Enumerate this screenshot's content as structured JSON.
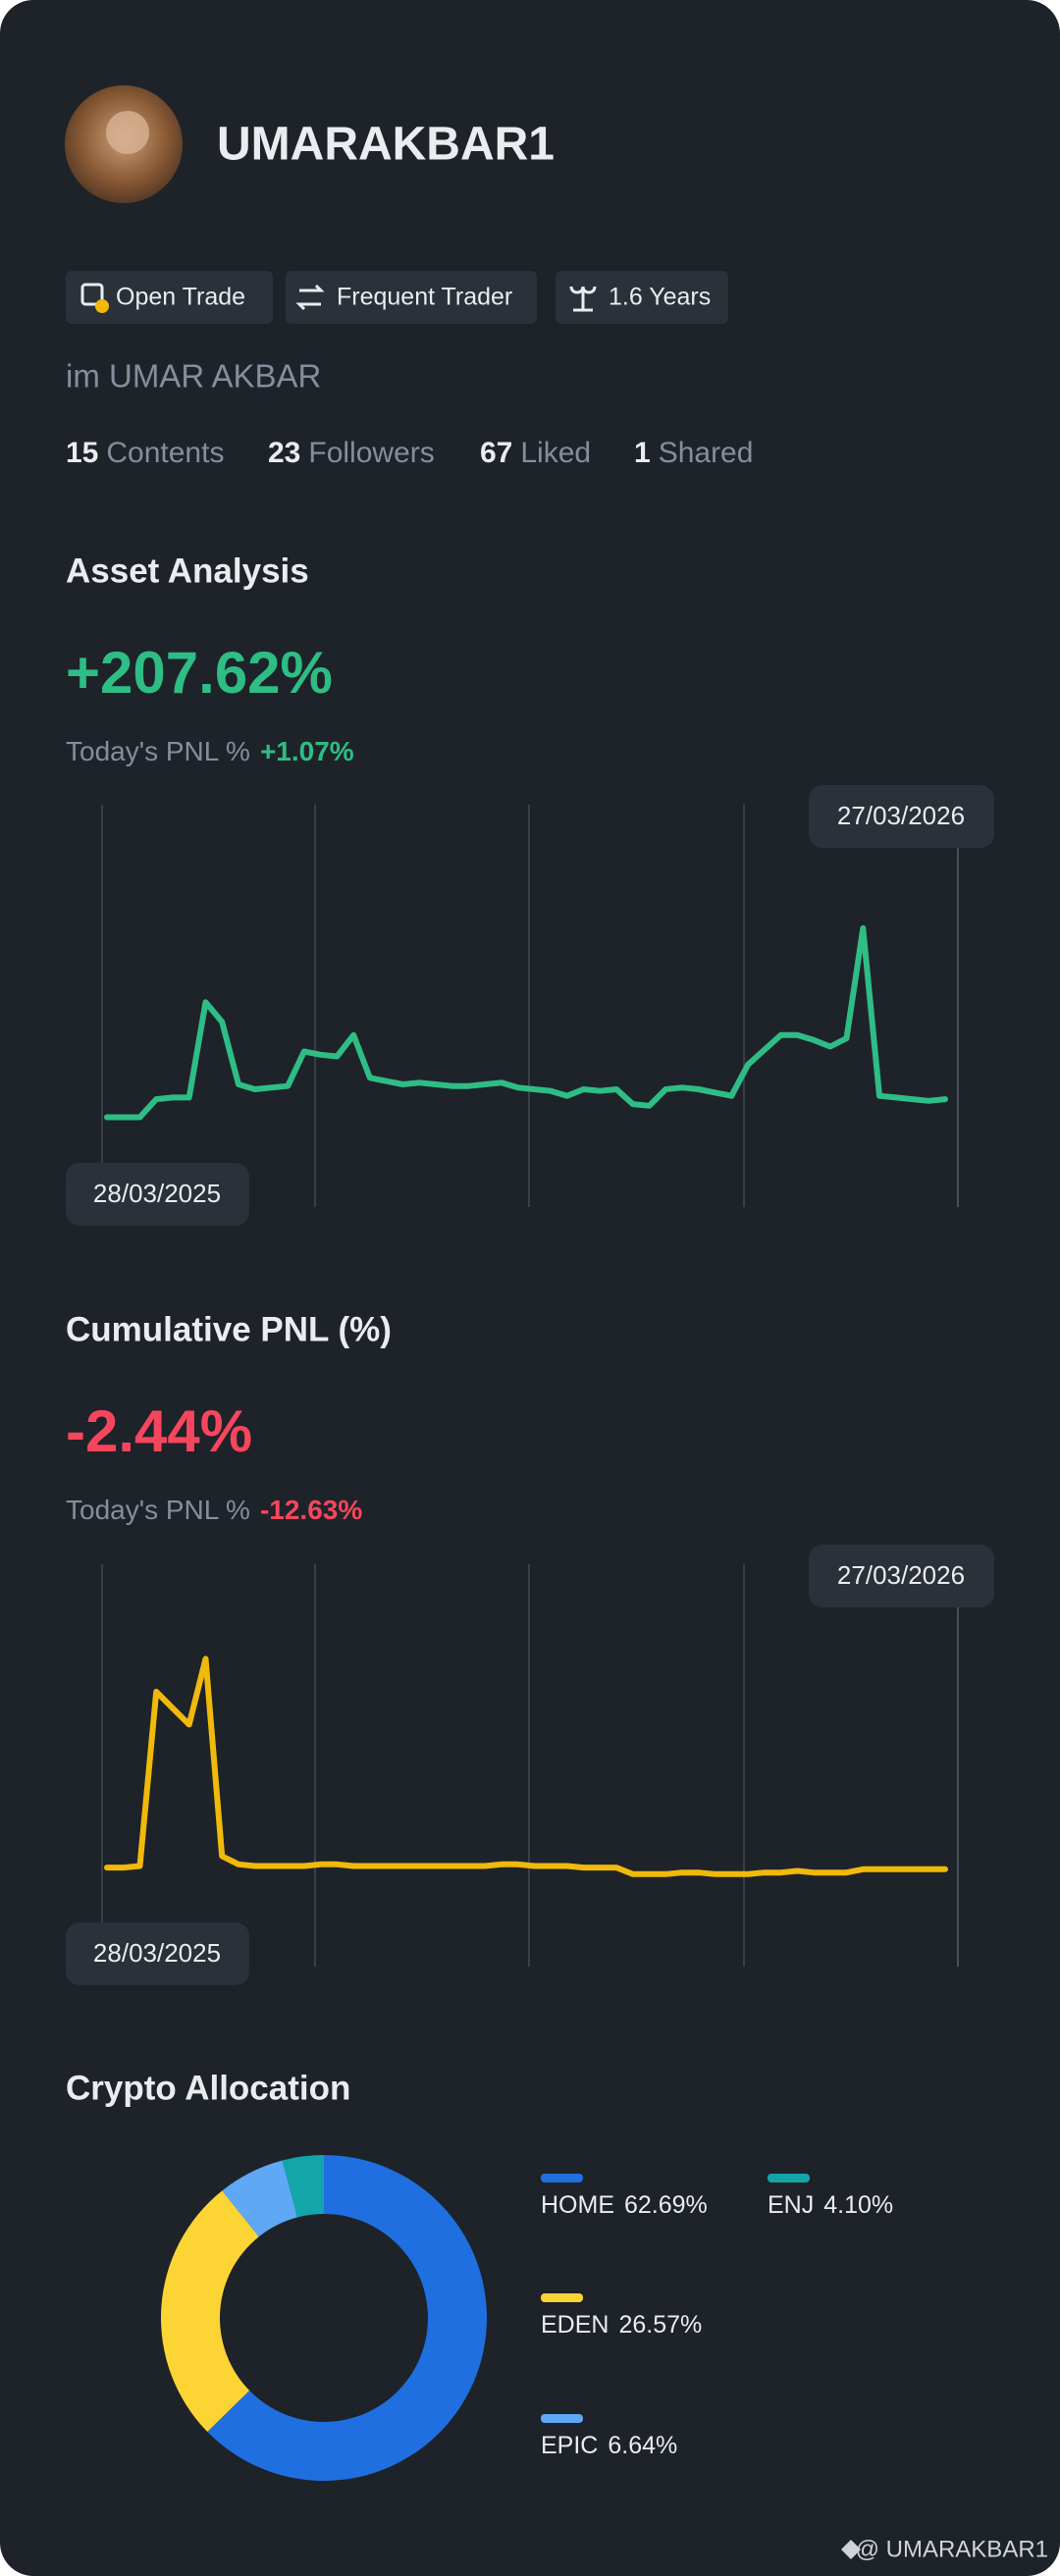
{
  "profile": {
    "name": "UMARAKBAR1",
    "badges": [
      "Open Trade",
      "Frequent Trader",
      "1.6 Years"
    ],
    "bio": "im UMAR AKBAR",
    "stats": [
      {
        "value": 15,
        "label": "Contents"
      },
      {
        "value": 23,
        "label": "Followers"
      },
      {
        "value": 67,
        "label": "Liked"
      },
      {
        "value": 1,
        "label": "Shared"
      }
    ]
  },
  "chart_data": [
    {
      "type": "line",
      "title": "Asset Analysis",
      "headline": "+207.62%",
      "subtitle": "Today's PNL %",
      "today": "+1.07%",
      "start_date": "28/03/2025",
      "end_date": "27/03/2026",
      "color": "#2ebd85",
      "ylim": [
        0,
        100
      ],
      "values": [
        10,
        10,
        10,
        15.5,
        16,
        16,
        45,
        39,
        20,
        18.5,
        19,
        19.5,
        30,
        29,
        28.5,
        35,
        22,
        21,
        20,
        20.5,
        20,
        19.5,
        19.5,
        20,
        20.5,
        19,
        18.5,
        18,
        16.5,
        18.5,
        18,
        18.5,
        14,
        13.5,
        18.5,
        19,
        18.5,
        17.5,
        16.5,
        26,
        30.5,
        35,
        35,
        33.5,
        31.5,
        34,
        67.5,
        16.5,
        16,
        15.5,
        15,
        15.5
      ]
    },
    {
      "type": "line",
      "title": "Cumulative PNL (%)",
      "headline": "-2.44%",
      "subtitle": "Today's PNL %",
      "today": "-12.63%",
      "start_date": "28/03/2025",
      "end_date": "27/03/2026",
      "color": "#f0b90b",
      "ylim": [
        0,
        100
      ],
      "values": [
        12.5,
        12.5,
        13,
        66,
        61,
        56,
        76,
        16,
        13.5,
        13,
        13,
        13,
        13,
        13.5,
        13.5,
        13,
        13,
        13,
        13,
        13,
        13,
        13,
        13,
        13,
        13.5,
        13.5,
        13,
        13,
        13,
        12.5,
        12.5,
        12.5,
        10.5,
        10.5,
        10.5,
        11,
        11,
        10.5,
        10.5,
        10.5,
        11,
        11,
        11.5,
        11,
        11,
        11,
        12,
        12,
        12,
        12,
        12,
        12
      ]
    },
    {
      "type": "pie",
      "title": "Crypto Allocation",
      "donut": true,
      "categories": [
        "HOME",
        "EDEN",
        "EPIC",
        "ENJ"
      ],
      "values": [
        62.69,
        26.57,
        6.64,
        4.1
      ],
      "value_labels": [
        "62.69%",
        "26.57%",
        "6.64%",
        "4.10%"
      ],
      "colors": [
        "#1f6fe0",
        "#fcd535",
        "#5ea8f5",
        "#14a5ab"
      ]
    }
  ],
  "watermark": "@ UMARAKBAR1"
}
